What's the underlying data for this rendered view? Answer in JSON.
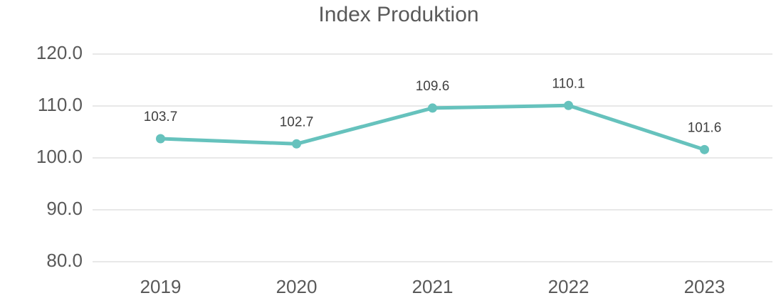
{
  "chart_data": {
    "type": "line",
    "title": "Index Produktion",
    "categories": [
      "2019",
      "2020",
      "2021",
      "2022",
      "2023"
    ],
    "series": [
      {
        "name": "Index Produktion",
        "color": "#66c2bd",
        "values": [
          103.7,
          102.7,
          109.6,
          110.1,
          101.6
        ]
      }
    ],
    "ylim": [
      80,
      120
    ],
    "yticks": [
      {
        "value": 80,
        "label": "80.0"
      },
      {
        "value": 90,
        "label": "90.0"
      },
      {
        "value": 100,
        "label": "100.0"
      },
      {
        "value": 110,
        "label": "110.0"
      },
      {
        "value": 120,
        "label": "120.0"
      }
    ],
    "grid": true
  }
}
